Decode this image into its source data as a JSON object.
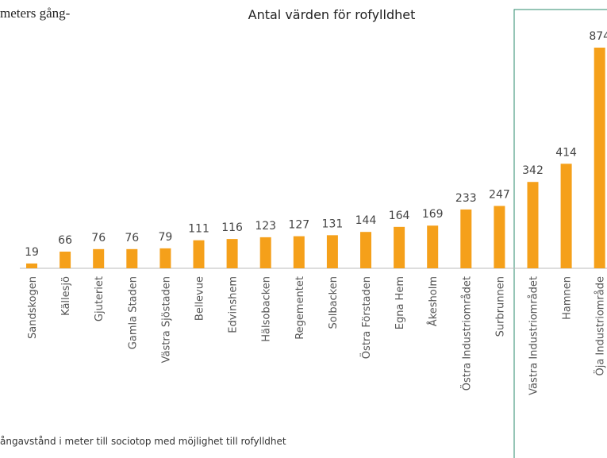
{
  "header_text": "meters gång-",
  "chart_data": {
    "type": "bar",
    "title": "Antal värden för rofylldhet",
    "categories": [
      "Sandskogen",
      "Källesjö",
      "Gjuteriet",
      "Gamla Staden",
      "Västra Sjöstaden",
      "Bellevue",
      "Edvinshem",
      "Hälsobacken",
      "Regementet",
      "Solbacken",
      "Östra Förstaden",
      "Egna Hem",
      "Åkesholm",
      "Östra Industriområdet",
      "Surbrunnen",
      "Västra Industriområdet",
      "Hamnen",
      "Öja Industriområde"
    ],
    "values": [
      19,
      66,
      76,
      76,
      79,
      111,
      116,
      123,
      127,
      131,
      144,
      164,
      169,
      233,
      247,
      342,
      414,
      874
    ],
    "color": "#f5a01a"
  },
  "footnote": "ångavstånd i meter till sociotop med möjlighet till rofylldhet"
}
